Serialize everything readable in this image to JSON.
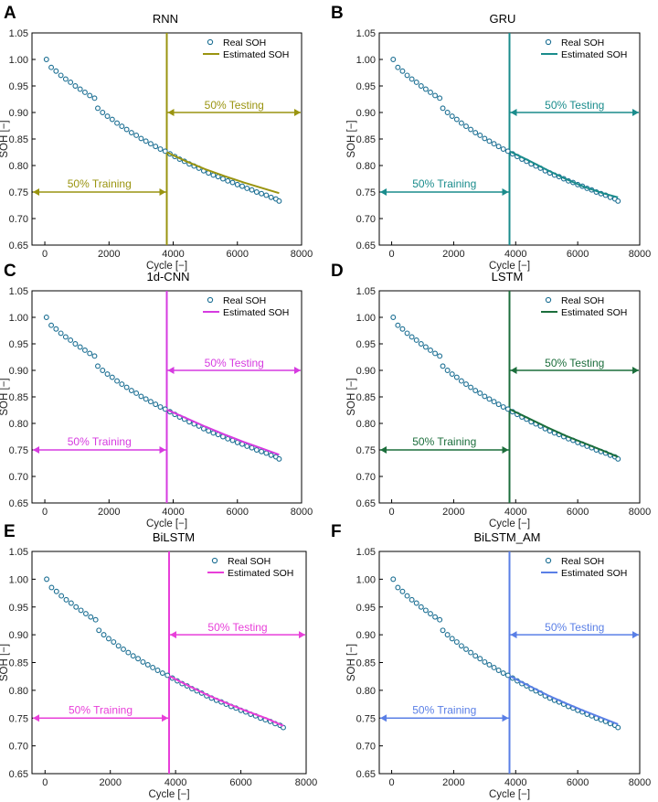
{
  "figure": {
    "description_title": ""
  },
  "chart_data": [
    {
      "panel": "A",
      "type": "scatter+line",
      "title": "RNN",
      "xlabel": "Cycle [−]",
      "ylabel": "SOH [−]",
      "xlim": [
        -400,
        8000
      ],
      "ylim": [
        0.65,
        1.05
      ],
      "xticks": [
        0,
        2000,
        4000,
        6000,
        8000
      ],
      "xtick_labels": [
        "0",
        "2000",
        "4000",
        "6000",
        "8000"
      ],
      "yticks": [
        0.65,
        0.7,
        0.75,
        0.8,
        0.85,
        0.9,
        0.95,
        1.0,
        1.05
      ],
      "ytick_labels": [
        "0.65",
        "0.70",
        "0.75",
        "0.80",
        "0.85",
        "0.90",
        "0.95",
        "1.00",
        "1.05"
      ],
      "color": "#9a9410",
      "split_x": 3800,
      "arrow_y_test": 0.9,
      "arrow_y_train": 0.75,
      "legend": [
        "Real SOH",
        "Estimated SOH"
      ],
      "annot_training": "50%  Training",
      "annot_testing": "50%  Testing",
      "estimated": {
        "x": [
          3800,
          4400,
          5000,
          5600,
          6200,
          6800,
          7300
        ],
        "y": [
          0.825,
          0.808,
          0.793,
          0.78,
          0.768,
          0.757,
          0.748
        ]
      }
    },
    {
      "panel": "B",
      "type": "scatter+line",
      "title": "GRU",
      "xlabel": "Cycle [−]",
      "ylabel": "SOH [−]",
      "xlim": [
        -400,
        8000
      ],
      "ylim": [
        0.65,
        1.05
      ],
      "xticks": [
        0,
        2000,
        4000,
        6000,
        8000
      ],
      "xtick_labels": [
        "0",
        "2000",
        "4000",
        "6000",
        "8000"
      ],
      "yticks": [
        0.65,
        0.7,
        0.75,
        0.8,
        0.85,
        0.9,
        0.95,
        1.0,
        1.05
      ],
      "ytick_labels": [
        "0.65",
        "0.70",
        "0.75",
        "0.80",
        "0.85",
        "0.90",
        "0.95",
        "1.00",
        "1.05"
      ],
      "color": "#1a8c8c",
      "split_x": 3800,
      "arrow_y_test": 0.9,
      "arrow_y_train": 0.75,
      "legend": [
        "Real SOH",
        "Estimated SOH"
      ],
      "annot_training": "50%  Training",
      "annot_testing": "50%  Testing",
      "estimated": {
        "x": [
          3800,
          4400,
          5000,
          5600,
          6200,
          6800,
          7300
        ],
        "y": [
          0.827,
          0.81,
          0.792,
          0.775,
          0.76,
          0.748,
          0.74
        ]
      }
    },
    {
      "panel": "C",
      "type": "scatter+line",
      "title": "1d-CNN",
      "xlabel": "Cycle [−]",
      "ylabel": "SOH [−]",
      "xlim": [
        -400,
        8000
      ],
      "ylim": [
        0.65,
        1.05
      ],
      "xticks": [
        0,
        2000,
        4000,
        6000,
        8000
      ],
      "xtick_labels": [
        "0",
        "2000",
        "4000",
        "6000",
        "8000"
      ],
      "yticks": [
        0.65,
        0.7,
        0.75,
        0.8,
        0.85,
        0.9,
        0.95,
        1.0,
        1.05
      ],
      "ytick_labels": [
        "0.65",
        "0.70",
        "0.75",
        "0.80",
        "0.85",
        "0.90",
        "0.95",
        "1.00",
        "1.05"
      ],
      "color": "#d63be0",
      "split_x": 3800,
      "arrow_y_test": 0.9,
      "arrow_y_train": 0.75,
      "legend": [
        "Real SOH",
        "Estimated SOH"
      ],
      "annot_training": "50%  Training",
      "annot_testing": "50%  Testing",
      "estimated": {
        "x": [
          3800,
          4400,
          5000,
          5600,
          6200,
          6800,
          7300
        ],
        "y": [
          0.826,
          0.81,
          0.794,
          0.779,
          0.765,
          0.752,
          0.741
        ]
      }
    },
    {
      "panel": "D",
      "type": "scatter+line",
      "title": "LSTM",
      "xlabel": "Cycle [−]",
      "ylabel": "SOH [−]",
      "xlim": [
        -400,
        8000
      ],
      "ylim": [
        0.65,
        1.05
      ],
      "xticks": [
        0,
        2000,
        4000,
        6000,
        8000
      ],
      "xtick_labels": [
        "0",
        "2000",
        "4000",
        "6000",
        "8000"
      ],
      "yticks": [
        0.65,
        0.7,
        0.75,
        0.8,
        0.85,
        0.9,
        0.95,
        1.0,
        1.05
      ],
      "ytick_labels": [
        "0.65",
        "0.70",
        "0.75",
        "0.80",
        "0.85",
        "0.90",
        "0.95",
        "1.00",
        "1.05"
      ],
      "color": "#1c6e3c",
      "split_x": 3800,
      "arrow_y_test": 0.9,
      "arrow_y_train": 0.75,
      "legend": [
        "Real SOH",
        "Estimated SOH"
      ],
      "annot_training": "50%  Training",
      "annot_testing": "50%  Testing",
      "estimated": {
        "x": [
          3800,
          4400,
          5000,
          5600,
          6200,
          6800,
          7300
        ],
        "y": [
          0.827,
          0.81,
          0.793,
          0.777,
          0.763,
          0.749,
          0.737
        ]
      }
    },
    {
      "panel": "E",
      "type": "scatter+line",
      "title": "BiLSTM",
      "xlabel": "Cycle [−]",
      "ylabel": "SOH [−]",
      "xlim": [
        -400,
        8000
      ],
      "ylim": [
        0.65,
        1.05
      ],
      "xticks": [
        0,
        2000,
        4000,
        6000,
        8000
      ],
      "xtick_labels": [
        "0",
        "2000",
        "4000",
        "6000",
        "8000"
      ],
      "yticks": [
        0.65,
        0.7,
        0.75,
        0.8,
        0.85,
        0.9,
        0.95,
        1.0,
        1.05
      ],
      "ytick_labels": [
        "0.65",
        "0.70",
        "0.75",
        "0.80",
        "0.85",
        "0.90",
        "0.95",
        "1.00",
        "1.05"
      ],
      "color": "#e83fd9",
      "split_x": 3800,
      "arrow_y_test": 0.9,
      "arrow_y_train": 0.75,
      "legend": [
        "Real SOH",
        "Estimated SOH"
      ],
      "annot_training": "50%  Training",
      "annot_testing": "50%  Testing",
      "estimated": {
        "x": [
          3800,
          4400,
          5000,
          5600,
          6200,
          6800,
          7300
        ],
        "y": [
          0.826,
          0.808,
          0.791,
          0.776,
          0.762,
          0.749,
          0.736
        ]
      }
    },
    {
      "panel": "F",
      "type": "scatter+line",
      "title": "BiLSTM_AM",
      "xlabel": "Cycle [−]",
      "ylabel": "SOH [−]",
      "xlim": [
        -400,
        8000
      ],
      "ylim": [
        0.65,
        1.05
      ],
      "xticks": [
        0,
        2000,
        4000,
        6000,
        8000
      ],
      "xtick_labels": [
        "0",
        "2000",
        "4000",
        "6000",
        "8000"
      ],
      "yticks": [
        0.65,
        0.7,
        0.75,
        0.8,
        0.85,
        0.9,
        0.95,
        1.0,
        1.05
      ],
      "ytick_labels": [
        "0.65",
        "0.70",
        "0.75",
        "0.80",
        "0.85",
        "0.90",
        "0.95",
        "1.00",
        "1.05"
      ],
      "color": "#5a7fe6",
      "split_x": 3800,
      "arrow_y_test": 0.9,
      "arrow_y_train": 0.75,
      "legend": [
        "Real SOH",
        "Estimated SOH"
      ],
      "annot_training": "50%  Training",
      "annot_testing": "50%  Testing",
      "estimated": {
        "x": [
          3800,
          4400,
          5000,
          5600,
          6200,
          6800,
          7300
        ],
        "y": [
          0.826,
          0.809,
          0.792,
          0.777,
          0.763,
          0.75,
          0.739
        ]
      }
    }
  ],
  "real_soh": {
    "x": [
      50,
      200,
      350,
      500,
      650,
      800,
      950,
      1100,
      1250,
      1400,
      1550,
      1650,
      1800,
      1950,
      2100,
      2250,
      2400,
      2550,
      2700,
      2850,
      3000,
      3150,
      3300,
      3450,
      3600,
      3750,
      3900,
      4050,
      4200,
      4350,
      4500,
      4650,
      4800,
      4950,
      5100,
      5250,
      5400,
      5550,
      5700,
      5850,
      6000,
      6150,
      6300,
      6450,
      6600,
      6750,
      6900,
      7050,
      7200,
      7300
    ],
    "y": [
      1.0,
      0.985,
      0.978,
      0.97,
      0.963,
      0.957,
      0.95,
      0.944,
      0.938,
      0.932,
      0.927,
      0.908,
      0.9,
      0.893,
      0.887,
      0.88,
      0.874,
      0.868,
      0.862,
      0.857,
      0.851,
      0.846,
      0.841,
      0.836,
      0.831,
      0.827,
      0.822,
      0.817,
      0.812,
      0.808,
      0.803,
      0.799,
      0.795,
      0.79,
      0.786,
      0.782,
      0.779,
      0.775,
      0.771,
      0.768,
      0.764,
      0.761,
      0.757,
      0.754,
      0.75,
      0.747,
      0.744,
      0.74,
      0.737,
      0.733
    ]
  }
}
